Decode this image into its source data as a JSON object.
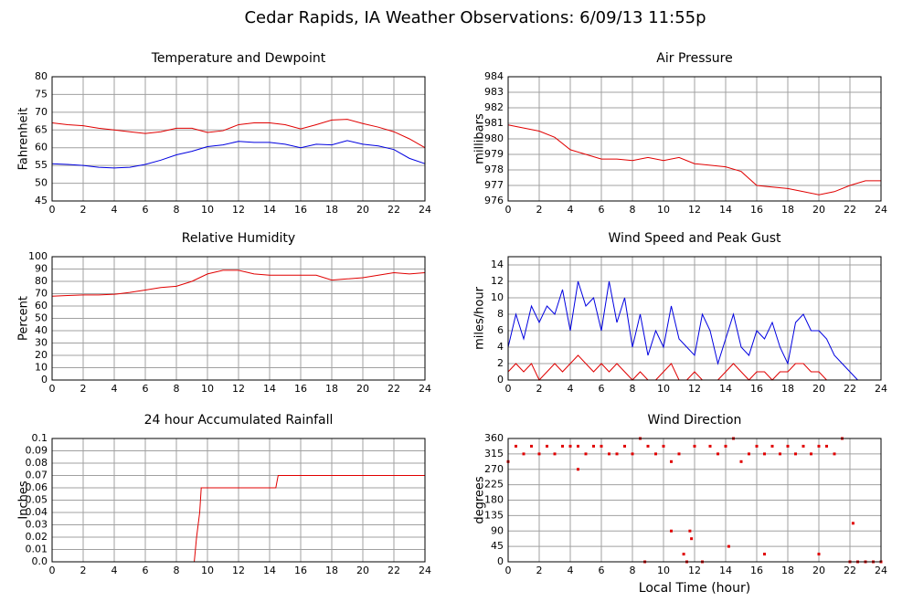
{
  "title": "Cedar Rapids, IA Weather Observations: 6/09/13 11:55p",
  "chart_data": [
    {
      "type": "line",
      "title": "Temperature and Dewpoint",
      "y_label": "Fahrenheit",
      "x": [
        0,
        1,
        2,
        3,
        4,
        5,
        6,
        7,
        8,
        9,
        10,
        11,
        12,
        13,
        14,
        15,
        16,
        17,
        18,
        19,
        20,
        21,
        22,
        23,
        24
      ],
      "series": [
        {
          "color": "#e00000",
          "values": [
            67,
            66.5,
            66.2,
            65.5,
            65,
            64.5,
            64,
            64.5,
            65.5,
            65.5,
            64.3,
            64.8,
            66.5,
            67,
            67,
            66.5,
            65.3,
            66.5,
            67.8,
            68,
            66.8,
            65.8,
            64.5,
            62.5,
            60
          ]
        },
        {
          "color": "#0000e0",
          "values": [
            55.5,
            55.3,
            55,
            54.5,
            54.3,
            54.5,
            55.3,
            56.5,
            58,
            59,
            60.3,
            60.8,
            61.8,
            61.5,
            61.5,
            61,
            60,
            61,
            60.8,
            62,
            61,
            60.5,
            59.5,
            57,
            55.5
          ]
        }
      ],
      "xlim": [
        0,
        24
      ],
      "xticks": [
        0,
        2,
        4,
        6,
        8,
        10,
        12,
        14,
        16,
        18,
        20,
        22,
        24
      ],
      "ylim": [
        45,
        80
      ],
      "yticks": [
        45,
        50,
        55,
        60,
        65,
        70,
        75,
        80
      ],
      "grid": true
    },
    {
      "type": "line",
      "title": "Air Pressure",
      "y_label": "millibars",
      "x": [
        0,
        1,
        2,
        3,
        4,
        5,
        6,
        7,
        8,
        9,
        10,
        11,
        12,
        13,
        14,
        15,
        16,
        17,
        18,
        19,
        20,
        21,
        22,
        23,
        24
      ],
      "series": [
        {
          "color": "#e00000",
          "values": [
            980.9,
            980.7,
            980.5,
            980.1,
            979.3,
            979.0,
            978.7,
            978.7,
            978.6,
            978.8,
            978.6,
            978.8,
            978.4,
            978.3,
            978.2,
            977.9,
            977.0,
            976.9,
            976.8,
            976.6,
            976.4,
            976.6,
            977.0,
            977.3,
            977.3
          ]
        }
      ],
      "xlim": [
        0,
        24
      ],
      "xticks": [
        0,
        2,
        4,
        6,
        8,
        10,
        12,
        14,
        16,
        18,
        20,
        22,
        24
      ],
      "ylim": [
        976,
        984
      ],
      "yticks": [
        976,
        977,
        978,
        979,
        980,
        981,
        982,
        983,
        984
      ],
      "grid": true
    },
    {
      "type": "line",
      "title": "Relative Humidity",
      "y_label": "Percent",
      "x": [
        0,
        1,
        2,
        3,
        4,
        5,
        6,
        7,
        8,
        9,
        10,
        11,
        12,
        13,
        14,
        15,
        16,
        17,
        18,
        19,
        20,
        21,
        22,
        23,
        24
      ],
      "series": [
        {
          "color": "#e00000",
          "values": [
            68,
            68.5,
            69,
            69,
            69.5,
            71,
            73,
            75,
            76,
            80,
            86,
            89,
            89,
            86,
            85,
            85,
            85,
            85,
            81,
            82,
            83,
            85,
            87,
            86,
            87
          ]
        }
      ],
      "xlim": [
        0,
        24
      ],
      "xticks": [
        0,
        2,
        4,
        6,
        8,
        10,
        12,
        14,
        16,
        18,
        20,
        22,
        24
      ],
      "ylim": [
        0,
        100
      ],
      "yticks": [
        0,
        10,
        20,
        30,
        40,
        50,
        60,
        70,
        80,
        90,
        100
      ],
      "grid": true
    },
    {
      "type": "line",
      "title": "Wind Speed and Peak Gust",
      "y_label": "miles/hour",
      "x": [
        0,
        0.5,
        1,
        1.5,
        2,
        2.5,
        3,
        3.5,
        4,
        4.5,
        5,
        5.5,
        6,
        6.5,
        7,
        7.5,
        8,
        8.5,
        9,
        9.5,
        10,
        10.5,
        11,
        11.5,
        12,
        12.5,
        13,
        13.5,
        14,
        14.5,
        15,
        15.5,
        16,
        16.5,
        17,
        17.5,
        18,
        18.5,
        19,
        19.5,
        20,
        20.5,
        21,
        21.5,
        22,
        22.5,
        23,
        23.5,
        24
      ],
      "series": [
        {
          "color": "#0000e0",
          "values": [
            4,
            8,
            5,
            9,
            7,
            9,
            8,
            11,
            6,
            12,
            9,
            10,
            6,
            12,
            7,
            10,
            4,
            8,
            3,
            6,
            4,
            9,
            5,
            4,
            3,
            8,
            6,
            2,
            5,
            8,
            4,
            3,
            6,
            5,
            7,
            4,
            2,
            7,
            8,
            6,
            6,
            5,
            3,
            2,
            1,
            0,
            0,
            0,
            0
          ]
        },
        {
          "color": "#e00000",
          "values": [
            1,
            2,
            1,
            2,
            0,
            1,
            2,
            1,
            2,
            3,
            2,
            1,
            2,
            1,
            2,
            1,
            0,
            1,
            0,
            0,
            1,
            2,
            0,
            0,
            1,
            0,
            0,
            0,
            1,
            2,
            1,
            0,
            1,
            1,
            0,
            1,
            1,
            2,
            2,
            1,
            1,
            0,
            0,
            0,
            0,
            0,
            0,
            0,
            0
          ]
        }
      ],
      "xlim": [
        0,
        24
      ],
      "xticks": [
        0,
        2,
        4,
        6,
        8,
        10,
        12,
        14,
        16,
        18,
        20,
        22,
        24
      ],
      "ylim": [
        0,
        15
      ],
      "yticks": [
        0,
        2,
        4,
        6,
        8,
        10,
        12,
        14
      ],
      "grid": true
    },
    {
      "type": "line",
      "title": "24 hour Accumulated Rainfall",
      "y_label": "Inches",
      "x": [
        0,
        9.15,
        9.3,
        9.5,
        9.6,
        14.4,
        14.55,
        24
      ],
      "series": [
        {
          "color": "#e00000",
          "values": [
            0,
            0,
            0.02,
            0.04,
            0.06,
            0.06,
            0.07,
            0.07
          ]
        }
      ],
      "xlim": [
        0,
        24
      ],
      "xticks": [
        0,
        2,
        4,
        6,
        8,
        10,
        12,
        14,
        16,
        18,
        20,
        22,
        24
      ],
      "ylim": [
        0,
        0.1
      ],
      "yticks": [
        {
          "value": 0,
          "label": "0.0"
        },
        0.01,
        0.02,
        0.03,
        0.04,
        0.05,
        0.06,
        0.07,
        0.08,
        0.09,
        0.1
      ],
      "grid": true
    },
    {
      "type": "scatter",
      "title": "Wind Direction",
      "y_label": "degrees",
      "x_label": "Local Time (hour)",
      "x": [
        0,
        0.5,
        1,
        1.5,
        2,
        2.5,
        3,
        3.5,
        4,
        4.5,
        5,
        5.5,
        6,
        6.5,
        7,
        7.5,
        8,
        8.5,
        9,
        9.5,
        10,
        10.5,
        11,
        11.5,
        11.7,
        12,
        12.5,
        13,
        13.5,
        14,
        14.5,
        15,
        15.5,
        16,
        16.5,
        17,
        17.5,
        18,
        18.5,
        19,
        19.5,
        20,
        20.5,
        21,
        21.5,
        22,
        22.2,
        22.5,
        23,
        23.5,
        24,
        4.5,
        10.5,
        11.8,
        14.2,
        16.5,
        20,
        11.3,
        8.8
      ],
      "series": [
        {
          "color": "#e00000",
          "values": [
            292.5,
            337.5,
            315,
            337.5,
            315,
            337.5,
            315,
            337.5,
            337.5,
            337.5,
            315,
            337.5,
            337.5,
            315,
            315,
            337.5,
            315,
            360,
            337.5,
            315,
            337.5,
            292.5,
            315,
            0,
            90,
            337.5,
            0,
            337.5,
            315,
            337.5,
            360,
            292.5,
            315,
            337.5,
            315,
            337.5,
            315,
            337.5,
            315,
            337.5,
            315,
            337.5,
            337.5,
            315,
            360,
            0,
            112.5,
            0,
            0,
            0,
            0,
            270,
            90,
            67.5,
            45,
            22.5,
            22.5,
            22.5,
            0
          ]
        }
      ],
      "xlim": [
        0,
        24
      ],
      "xticks": [
        0,
        2,
        4,
        6,
        8,
        10,
        12,
        14,
        16,
        18,
        20,
        22,
        24
      ],
      "ylim": [
        0,
        360
      ],
      "yticks": [
        0,
        45,
        90,
        135,
        180,
        225,
        270,
        315,
        360
      ],
      "grid": true
    }
  ]
}
